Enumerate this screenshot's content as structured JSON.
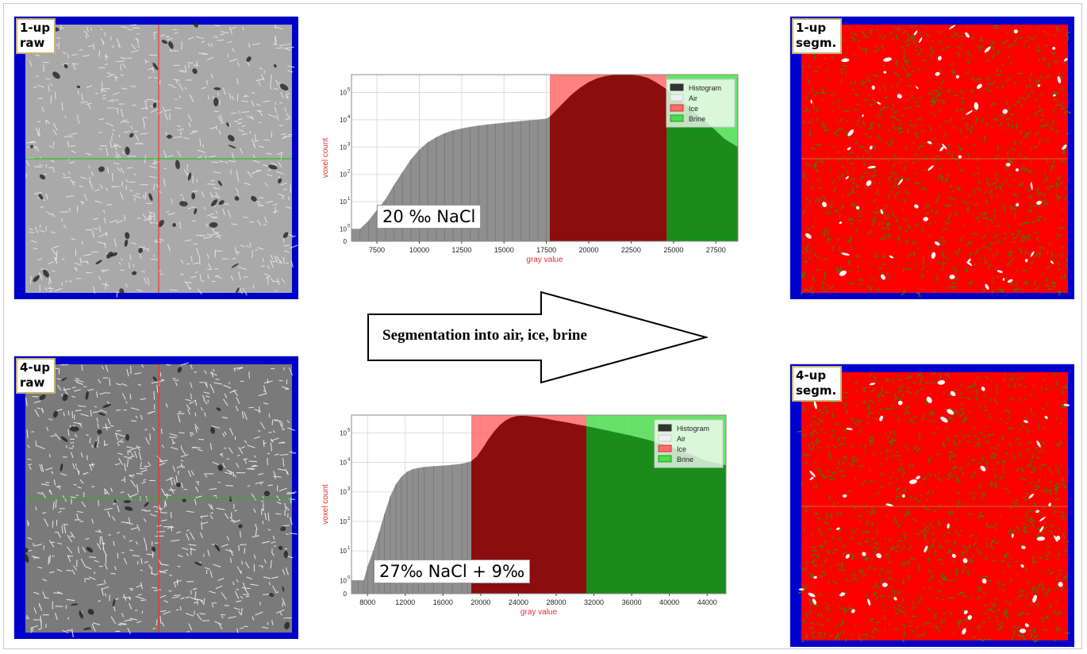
{
  "panels": {
    "p1_raw": {
      "label_line1": "1-up",
      "label_line2": "raw"
    },
    "p4_raw": {
      "label_line1": "4-up",
      "label_line2": "raw"
    },
    "p1_segm": {
      "label_line1": "1-up",
      "label_line2": "segm."
    },
    "p4_segm": {
      "label_line1": "4-up",
      "label_line2": "segm."
    }
  },
  "arrow": {
    "text": "Segmentation into air, ice, brine"
  },
  "colors": {
    "border": "#0000cc",
    "ice": "#ff0000",
    "brine": "#2e8b00",
    "air": "#ffffff",
    "crosshair_v": "#ff2020",
    "crosshair_h": "#10c010",
    "histogram": "#888888"
  },
  "chart_data": [
    {
      "type": "area",
      "tag": "20 ‰ NaCl",
      "xlabel": "gray value",
      "ylabel": "voxel count",
      "yscale": "log",
      "xlim": [
        6000,
        28800
      ],
      "ylim": [
        0,
        450000
      ],
      "xticks": [
        "7500",
        "10000",
        "12500",
        "15000",
        "17500",
        "20000",
        "22500",
        "25000",
        "27500"
      ],
      "xtick_values": [
        7500,
        10000,
        12500,
        15000,
        17500,
        20000,
        22500,
        25000,
        27500
      ],
      "ytick_labels": [
        [
          "0",
          ""
        ],
        [
          "10",
          "0"
        ],
        [
          "10",
          "1"
        ],
        [
          "10",
          "2"
        ],
        [
          "10",
          "3"
        ],
        [
          "10",
          "4"
        ],
        [
          "10",
          "5"
        ]
      ],
      "ytick_values": [
        0,
        1,
        10,
        100,
        1000,
        10000,
        100000
      ],
      "legend": [
        "Histogram",
        "Air",
        "Ice",
        "Brine"
      ],
      "legend_position": "top-right",
      "regions": {
        "air": [
          6000,
          17700
        ],
        "ice": [
          17700,
          24600
        ],
        "brine": [
          24600,
          28800
        ]
      },
      "x": [
        6000,
        6500,
        7000,
        7500,
        8000,
        8500,
        9000,
        9500,
        10000,
        10500,
        11000,
        11500,
        12000,
        12500,
        13000,
        13500,
        14000,
        14500,
        15000,
        15500,
        16000,
        16500,
        17000,
        17500,
        17700,
        18000,
        18500,
        19000,
        19500,
        20000,
        20500,
        21000,
        21500,
        22000,
        22500,
        23000,
        23500,
        24000,
        24600,
        25000,
        25500,
        26000,
        26500,
        27000,
        27500,
        28000,
        28800
      ],
      "y": [
        1,
        1,
        2,
        5,
        12,
        40,
        120,
        350,
        800,
        1500,
        2300,
        3200,
        4100,
        4800,
        5500,
        6100,
        6700,
        7200,
        7800,
        8400,
        9000,
        9600,
        10200,
        11000,
        13000,
        20000,
        42000,
        85000,
        150000,
        240000,
        330000,
        400000,
        440000,
        450000,
        440000,
        410000,
        340000,
        230000,
        130000,
        80000,
        45000,
        25000,
        14000,
        7500,
        4000,
        2000,
        1000
      ]
    },
    {
      "type": "area",
      "tag": "27‰ NaCl + 9‰",
      "xlabel": "gray value",
      "ylabel": "voxel count",
      "yscale": "log",
      "xlim": [
        6300,
        46000
      ],
      "ylim": [
        0,
        400000
      ],
      "xticks": [
        "8000",
        "12000",
        "16000",
        "20000",
        "24000",
        "28000",
        "32000",
        "36000",
        "40000",
        "44000"
      ],
      "xtick_values": [
        8000,
        12000,
        16000,
        20000,
        24000,
        28000,
        32000,
        36000,
        40000,
        44000
      ],
      "ytick_labels": [
        [
          "0",
          ""
        ],
        [
          "10",
          "0"
        ],
        [
          "10",
          "1"
        ],
        [
          "10",
          "2"
        ],
        [
          "10",
          "3"
        ],
        [
          "10",
          "4"
        ],
        [
          "10",
          "5"
        ]
      ],
      "ytick_values": [
        0,
        1,
        10,
        100,
        1000,
        10000,
        100000
      ],
      "legend": [
        "Histogram",
        "Air",
        "Ice",
        "Brine"
      ],
      "legend_position": "top-right",
      "regions": {
        "air": [
          6300,
          19000
        ],
        "ice": [
          19000,
          31200
        ],
        "brine": [
          31200,
          46000
        ]
      },
      "x": [
        6300,
        7000,
        7600,
        8000,
        8600,
        9200,
        9800,
        10400,
        11000,
        11600,
        12200,
        12800,
        13400,
        14000,
        15000,
        16000,
        17000,
        18000,
        18600,
        19000,
        19600,
        20200,
        20800,
        21400,
        22000,
        22600,
        23200,
        23800,
        24400,
        25000,
        26000,
        27000,
        28000,
        29000,
        30000,
        31200,
        32000,
        34000,
        36000,
        38000,
        40000,
        42000,
        44000,
        46000
      ],
      "y": [
        1,
        1,
        1,
        3,
        10,
        40,
        180,
        700,
        1800,
        3300,
        4800,
        5900,
        6500,
        7000,
        7400,
        7800,
        8300,
        9000,
        10000,
        11000,
        16000,
        30000,
        60000,
        110000,
        180000,
        260000,
        330000,
        370000,
        380000,
        370000,
        340000,
        300000,
        260000,
        230000,
        200000,
        170000,
        150000,
        110000,
        80000,
        55000,
        35000,
        20000,
        11000,
        8000
      ]
    }
  ]
}
